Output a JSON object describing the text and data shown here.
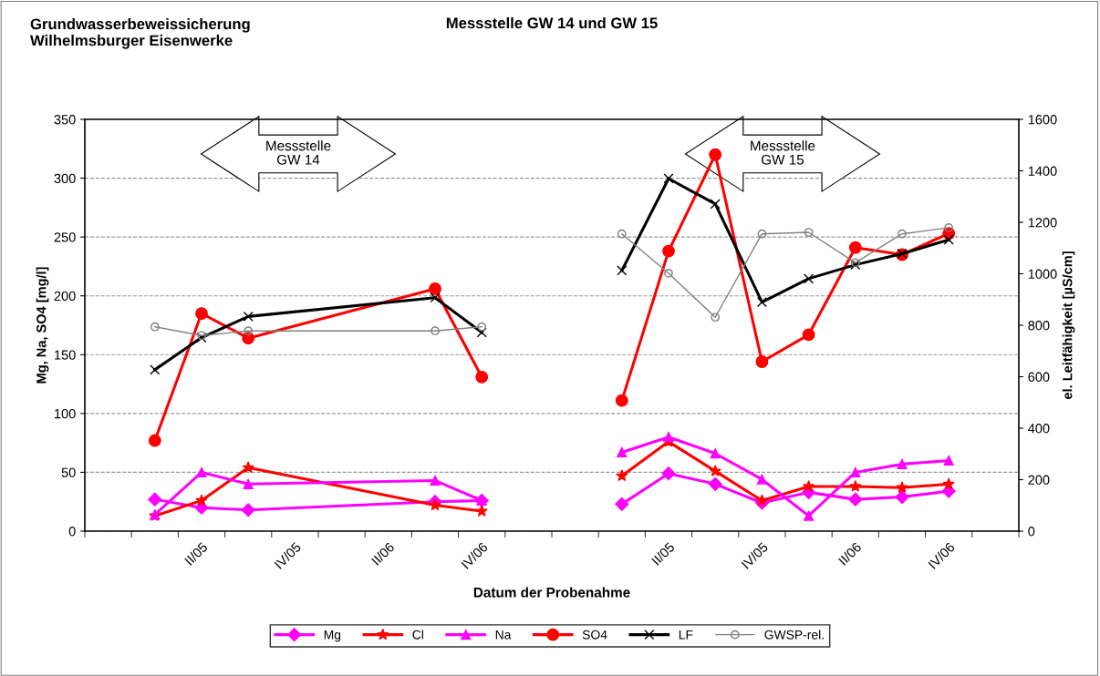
{
  "chart_data": {
    "type": "line",
    "title": "Messstelle GW 14 und GW 15",
    "categories": [
      null,
      null,
      "II/05",
      null,
      "IV/05",
      null,
      "II/06",
      null,
      "IV/06",
      null,
      null,
      null,
      "II/05",
      null,
      "IV/05",
      null,
      "II/06",
      null,
      "IV/06",
      null
    ],
    "xlabel": "Datum der Probenahme",
    "ylabel": "Mg, Na, SO4 [mg/l]",
    "y2label": "el. Leitfähigkeit [µS/cm]",
    "ylim": [
      0,
      350
    ],
    "yticks": [
      0,
      50,
      100,
      150,
      200,
      250,
      300,
      350
    ],
    "y2lim": [
      0,
      1600
    ],
    "y2ticks": [
      0,
      200,
      400,
      600,
      800,
      1000,
      1200,
      1400,
      1600
    ],
    "grid": "y",
    "legend": "bottom",
    "line_style": "solid",
    "annotations": [
      "Grundwasserbeweissicherung\nWilhelmsburger Eisenwerke",
      "Messstelle\nGW 14",
      "Messstelle\nGW 15"
    ],
    "series": [
      {
        "name": "Mg",
        "color": "#ff00ff",
        "marker": "diamond",
        "values": [
          null,
          27,
          20,
          18,
          null,
          null,
          null,
          25,
          26,
          null,
          null,
          null,
          null,
          null,
          null,
          null,
          null,
          null,
          null,
          null
        ]
      },
      {
        "name": "Cl",
        "color": "#ff0000",
        "marker": "star",
        "values": [
          null,
          13,
          26,
          54,
          null,
          null,
          null,
          22,
          17,
          null,
          null,
          null,
          null,
          null,
          null,
          null,
          null,
          null,
          null,
          null
        ]
      },
      {
        "name": "Na",
        "color": "#ff00ff",
        "marker": "triangle",
        "values": [
          null,
          14,
          50,
          40,
          null,
          null,
          null,
          43,
          26,
          null,
          null,
          null,
          null,
          null,
          null,
          null,
          null,
          null,
          null,
          null
        ]
      },
      {
        "name": "SO4",
        "color": "#ff0000",
        "marker": "circle",
        "values": [
          null,
          77,
          185,
          164,
          null,
          null,
          null,
          206,
          131,
          null,
          null,
          null,
          null,
          null,
          null,
          null,
          null,
          null,
          null,
          null
        ]
      },
      {
        "name": "LF",
        "color": "#000000",
        "marker": "cross",
        "axis": "y2",
        "values": [
          null,
          627,
          752,
          834,
          null,
          null,
          null,
          907,
          772,
          null,
          null,
          null,
          null,
          null,
          null,
          null,
          null,
          null,
          null,
          null
        ]
      },
      {
        "name": "GWSP-rel.",
        "color": "#808080",
        "marker": "circle",
        "axis": "y2",
        "values": [
          null,
          794,
          760,
          778,
          null,
          null,
          null,
          778,
          794,
          null,
          null,
          null,
          null,
          null,
          null,
          null,
          null,
          null,
          null,
          null
        ]
      },
      {
        "color": "#ff00ff",
        "marker": "diamond",
        "values": [
          null,
          null,
          null,
          null,
          null,
          null,
          null,
          null,
          null,
          null,
          null,
          23,
          49,
          40,
          24,
          33,
          27,
          29,
          34,
          null
        ]
      },
      {
        "color": "#ff0000",
        "marker": "star",
        "values": [
          null,
          null,
          null,
          null,
          null,
          null,
          null,
          null,
          null,
          null,
          null,
          47,
          76,
          51,
          26,
          38,
          38,
          37,
          40,
          null
        ]
      },
      {
        "color": "#ff00ff",
        "marker": "triangle",
        "values": [
          null,
          null,
          null,
          null,
          null,
          null,
          null,
          null,
          null,
          null,
          null,
          67,
          80,
          66,
          44,
          13,
          50,
          57,
          60,
          null
        ]
      },
      {
        "color": "#ff0000",
        "marker": "circle",
        "values": [
          null,
          null,
          null,
          null,
          null,
          null,
          null,
          null,
          null,
          null,
          null,
          111,
          238,
          320,
          144,
          167,
          241,
          235,
          253,
          null
        ]
      },
      {
        "color": "#000000",
        "marker": "cross",
        "axis": "y2",
        "values": [
          null,
          null,
          null,
          null,
          null,
          null,
          null,
          null,
          null,
          null,
          null,
          1013,
          1370,
          1271,
          890,
          981,
          1035,
          1078,
          1132,
          null
        ]
      },
      {
        "color": "#808080",
        "marker": "circle",
        "axis": "y2",
        "values": [
          null,
          null,
          null,
          null,
          null,
          null,
          null,
          null,
          null,
          null,
          null,
          1155,
          1002,
          831,
          1155,
          1161,
          1043,
          1155,
          1179,
          null
        ]
      }
    ]
  }
}
